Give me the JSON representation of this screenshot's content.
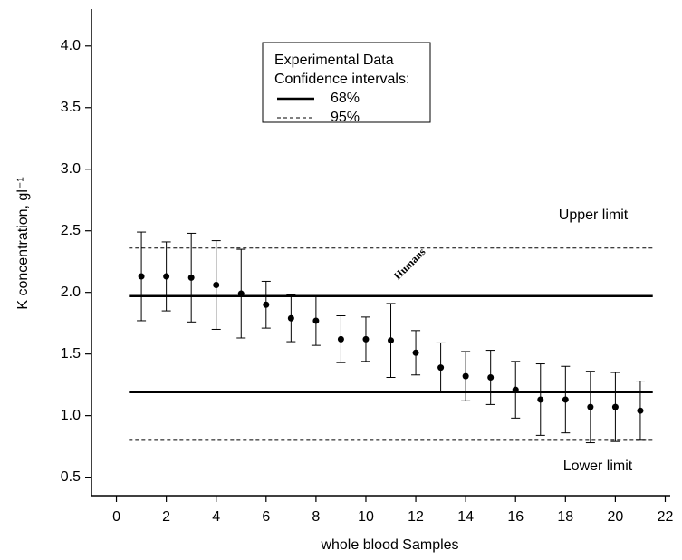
{
  "chart_data": {
    "type": "errorbar",
    "x_label": "whole blood Samples",
    "y_label": "K concentration, gl⁻¹",
    "xlim": [
      -1,
      22.2
    ],
    "ylim": [
      0.35,
      4.3
    ],
    "xticks": [
      0,
      2,
      4,
      6,
      8,
      10,
      12,
      14,
      16,
      18,
      20,
      22
    ],
    "yticks": [
      0.5,
      {
        "value": 1.0,
        "label": "1.0"
      },
      1.5,
      {
        "value": 2.0,
        "label": "2.0"
      },
      2.5,
      {
        "value": 3.0,
        "label": "3.0"
      },
      3.5,
      {
        "value": 4.0,
        "label": "4.0"
      }
    ],
    "series": [
      {
        "name": "Experimental Data",
        "color": "#000000",
        "x": [
          1,
          2,
          3,
          4,
          5,
          6,
          7,
          8,
          9,
          10,
          11,
          12,
          13,
          14,
          15,
          16,
          17,
          18,
          19,
          20,
          21
        ],
        "values": [
          2.13,
          2.13,
          2.12,
          2.06,
          1.99,
          1.9,
          1.79,
          1.77,
          1.62,
          1.62,
          1.61,
          1.51,
          1.39,
          1.32,
          1.31,
          1.21,
          1.13,
          1.13,
          1.07,
          1.07,
          1.04
        ],
        "errors": [
          0.36,
          0.28,
          0.36,
          0.36,
          0.36,
          0.19,
          0.19,
          0.2,
          0.19,
          0.18,
          0.3,
          0.18,
          0.2,
          0.2,
          0.22,
          0.23,
          0.29,
          0.27,
          0.29,
          0.28,
          0.24
        ]
      }
    ],
    "legend_subtitle": "Confidence intervals:",
    "confidence_lines": [
      {
        "name": "68%",
        "style": "solid",
        "values": [
          1.97,
          1.19
        ]
      },
      {
        "name": "95%",
        "style": "dashed",
        "values": [
          2.36,
          0.8
        ]
      }
    ],
    "line_x": [
      0.5,
      21.5
    ],
    "annotations": [
      "Upper limit",
      "Lower limit",
      "Humans"
    ]
  }
}
